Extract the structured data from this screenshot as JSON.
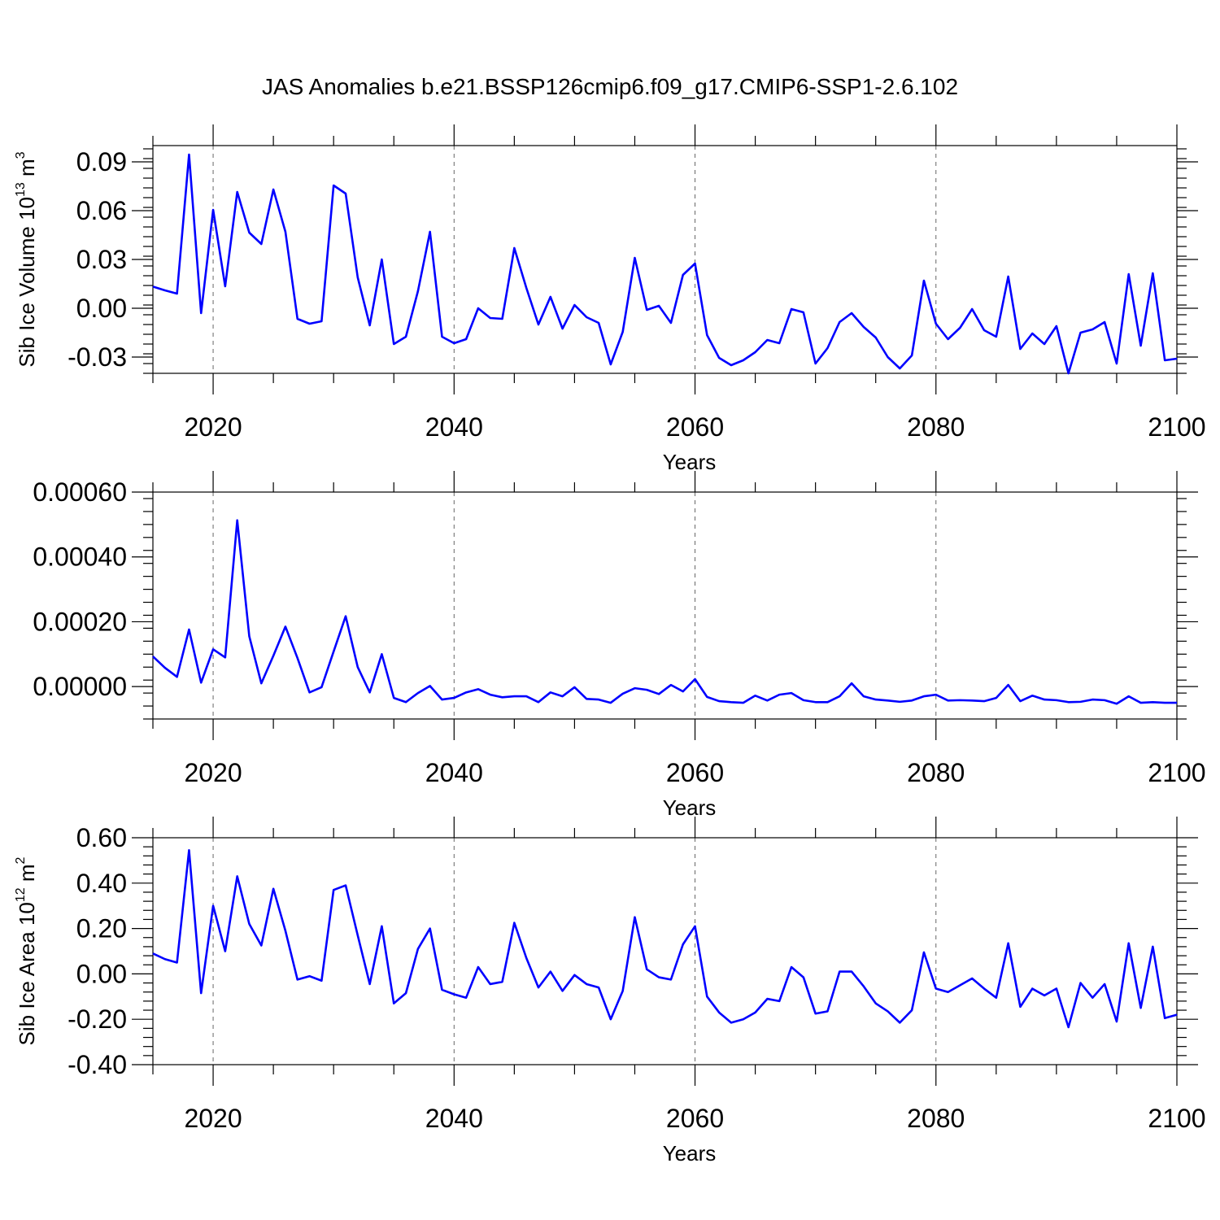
{
  "figure": {
    "title": "JAS Anomalies b.e21.BSSP126cmip6.f09_g17.CMIP6-SSP1-2.6.102",
    "line_color": "#0000ff"
  },
  "chart_data": [
    {
      "type": "line",
      "title": "",
      "xlabel": "Years",
      "ylabel_base": "Sib Ice Volume 10",
      "ylabel_exp": "13",
      "ylabel_unit": " m",
      "ylabel_unit_exp": "3",
      "xlim": [
        2015,
        2100
      ],
      "ylim": [
        -0.04,
        0.1
      ],
      "xticks": [
        2020,
        2040,
        2060,
        2080,
        2100
      ],
      "xtick_labels": [
        "2020",
        "2040",
        "2060",
        "2080",
        "2100"
      ],
      "yticks": [
        -0.03,
        0.0,
        0.03,
        0.06,
        0.09
      ],
      "ytick_labels": [
        "-0.03",
        "0.00",
        "0.03",
        "0.06",
        "0.09"
      ],
      "yminor_step": 0.006,
      "grid": "dashed vertical at major x ticks",
      "x_start": 2015,
      "values": [
        0.0133,
        0.011,
        0.009,
        0.0945,
        -0.003,
        0.0605,
        0.0135,
        0.0715,
        0.0465,
        0.0395,
        0.073,
        0.047,
        -0.0065,
        -0.0095,
        -0.008,
        0.0755,
        0.0705,
        0.019,
        -0.0105,
        0.03,
        -0.022,
        -0.0175,
        0.0105,
        0.047,
        -0.0175,
        -0.0215,
        -0.019,
        0.0,
        -0.006,
        -0.0065,
        0.037,
        0.0125,
        -0.01,
        0.007,
        -0.0125,
        0.002,
        -0.0055,
        -0.009,
        -0.0345,
        -0.0145,
        0.031,
        -0.001,
        0.0015,
        -0.009,
        0.0205,
        0.0275,
        -0.0165,
        -0.0305,
        -0.035,
        -0.032,
        -0.027,
        -0.0195,
        -0.0215,
        -0.0005,
        -0.0025,
        -0.034,
        -0.0245,
        -0.0085,
        -0.003,
        -0.0115,
        -0.018,
        -0.03,
        -0.037,
        -0.029,
        0.017,
        -0.0095,
        -0.019,
        -0.012,
        -0.0005,
        -0.0135,
        -0.0175,
        0.0195,
        -0.025,
        -0.0155,
        -0.022,
        -0.011,
        -0.04,
        -0.015,
        -0.013,
        -0.0085,
        -0.034,
        0.021,
        -0.023,
        0.0215,
        -0.032,
        -0.031
      ]
    },
    {
      "type": "line",
      "title": "",
      "xlabel": "Years",
      "ylabel_base": "",
      "ylabel_exp": "",
      "ylabel_unit": "",
      "ylabel_unit_exp": "",
      "xlim": [
        2015,
        2100
      ],
      "ylim": [
        -0.0001,
        0.0006
      ],
      "xticks": [
        2020,
        2040,
        2060,
        2080,
        2100
      ],
      "xtick_labels": [
        "2020",
        "2040",
        "2060",
        "2080",
        "2100"
      ],
      "yticks": [
        0.0,
        0.0002,
        0.0004,
        0.0006
      ],
      "ytick_labels": [
        "0.00000",
        "0.00020",
        "0.00040",
        "0.00060"
      ],
      "yminor_step": 4e-05,
      "grid": "dashed vertical at major x ticks",
      "x_start": 2015,
      "values": [
        9.3e-05,
        5.8e-05,
        3e-05,
        0.000176,
        1.2e-05,
        0.000115,
        9e-05,
        0.000513,
        0.000155,
        1e-05,
        9.5e-05,
        0.000185,
        8.8e-05,
        -1.8e-05,
        -2e-06,
        0.000108,
        0.000217,
        6e-05,
        -1.8e-05,
        0.0001,
        -3.5e-05,
        -4.8e-05,
        -2e-05,
        2e-06,
        -4e-05,
        -3.5e-05,
        -1.8e-05,
        -8e-06,
        -2.5e-05,
        -3.3e-05,
        -3e-05,
        -3e-05,
        -4.8e-05,
        -1.8e-05,
        -3e-05,
        -2e-06,
        -3.8e-05,
        -4e-05,
        -5e-05,
        -2.2e-05,
        -5e-06,
        -1e-05,
        -2.3e-05,
        5e-06,
        -1.5e-05,
        2.3e-05,
        -3.2e-05,
        -4.5e-05,
        -4.8e-05,
        -5e-05,
        -2.8e-05,
        -4.3e-05,
        -2.5e-05,
        -2e-05,
        -4.2e-05,
        -4.8e-05,
        -4.8e-05,
        -3e-05,
        1e-05,
        -3e-05,
        -4e-05,
        -4.3e-05,
        -4.7e-05,
        -4.3e-05,
        -3e-05,
        -2.5e-05,
        -4.3e-05,
        -4.2e-05,
        -4.3e-05,
        -4.5e-05,
        -3.5e-05,
        5e-06,
        -4.5e-05,
        -2.8e-05,
        -4e-05,
        -4.2e-05,
        -4.8e-05,
        -4.7e-05,
        -4e-05,
        -4.2e-05,
        -5.3e-05,
        -3e-05,
        -5e-05,
        -4.8e-05,
        -5e-05,
        -5e-05
      ]
    },
    {
      "type": "line",
      "title": "",
      "xlabel": "Years",
      "ylabel_base": "Sib Ice Area 10",
      "ylabel_exp": "12",
      "ylabel_unit": " m",
      "ylabel_unit_exp": "2",
      "xlim": [
        2015,
        2100
      ],
      "ylim": [
        -0.4,
        0.6
      ],
      "xticks": [
        2020,
        2040,
        2060,
        2080,
        2100
      ],
      "xtick_labels": [
        "2020",
        "2040",
        "2060",
        "2080",
        "2100"
      ],
      "yticks": [
        -0.4,
        -0.2,
        0.0,
        0.2,
        0.4,
        0.6
      ],
      "ytick_labels": [
        "-0.40",
        "-0.20",
        "0.00",
        "0.20",
        "0.40",
        "0.60"
      ],
      "yminor_step": 0.04,
      "grid": "dashed vertical at major x ticks",
      "x_start": 2015,
      "values": [
        0.09,
        0.065,
        0.05,
        0.545,
        -0.085,
        0.3,
        0.1,
        0.43,
        0.22,
        0.125,
        0.375,
        0.19,
        -0.025,
        -0.01,
        -0.03,
        0.37,
        0.39,
        0.17,
        -0.045,
        0.21,
        -0.13,
        -0.085,
        0.11,
        0.2,
        -0.07,
        -0.09,
        -0.105,
        0.03,
        -0.045,
        -0.035,
        0.225,
        0.07,
        -0.06,
        0.01,
        -0.075,
        -0.005,
        -0.045,
        -0.06,
        -0.2,
        -0.075,
        0.25,
        0.02,
        -0.015,
        -0.025,
        0.13,
        0.21,
        -0.1,
        -0.17,
        -0.215,
        -0.2,
        -0.17,
        -0.11,
        -0.12,
        0.03,
        -0.015,
        -0.175,
        -0.165,
        0.01,
        0.01,
        -0.055,
        -0.13,
        -0.165,
        -0.215,
        -0.16,
        0.095,
        -0.065,
        -0.08,
        -0.05,
        -0.02,
        -0.065,
        -0.105,
        0.135,
        -0.145,
        -0.065,
        -0.095,
        -0.065,
        -0.235,
        -0.04,
        -0.105,
        -0.045,
        -0.21,
        0.135,
        -0.15,
        0.12,
        -0.195,
        -0.18
      ]
    }
  ]
}
